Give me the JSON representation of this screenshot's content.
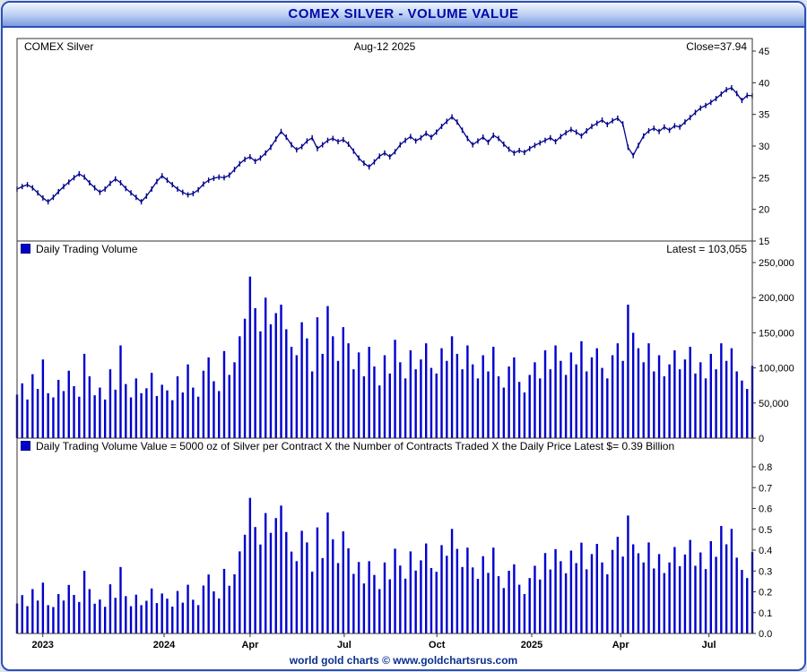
{
  "titlebar": {
    "text": "COMEX SILVER - VOLUME VALUE"
  },
  "footer": {
    "text": "world gold charts © www.goldchartsrus.com"
  },
  "colors": {
    "accent_blue": "#2b50b8",
    "title_text": "#0008a8",
    "price_line": "#00008B",
    "bar_blue": "#0000CD",
    "frame_line": "#333333",
    "footer_text": "#0a2f8f"
  },
  "panels": {
    "price": {
      "label": "COMEX Silver",
      "date": "Aug-12 2025",
      "close_label": "Close=37.94"
    },
    "volume": {
      "label": "Daily Trading Volume",
      "latest_label": "Latest = 103,055"
    },
    "value": {
      "label": "Daily Trading Volume Value = 5000 oz of Silver per Contract X the Number of Contracts Traded X the Daily Price  Latest $= 0.39 Billion"
    }
  },
  "chart_data": [
    {
      "type": "line",
      "name": "COMEX Silver daily close price (USD/oz)",
      "note": "Dense daily OHLC chart; series below is an evenly-spaced sampled estimate read from the pixels, x = index/(n-1) across the plot.",
      "ylim": [
        15,
        45
      ],
      "yticks": [
        15,
        20,
        25,
        30,
        35,
        40,
        45
      ],
      "latest_close": 37.94,
      "date_label": "Aug-12 2025",
      "xticks": [
        {
          "label": "2023",
          "f": 0.035
        },
        {
          "label": "2024",
          "f": 0.2
        },
        {
          "label": "Apr",
          "f": 0.317
        },
        {
          "label": "Jul",
          "f": 0.445
        },
        {
          "label": "Oct",
          "f": 0.571
        },
        {
          "label": "2025",
          "f": 0.7
        },
        {
          "label": "Apr",
          "f": 0.821
        },
        {
          "label": "Jul",
          "f": 0.941
        }
      ],
      "close_series": [
        23.2,
        23.6,
        23.9,
        23.4,
        22.6,
        21.8,
        21.2,
        21.9,
        22.8,
        23.6,
        24.3,
        25.0,
        25.6,
        25.1,
        24.2,
        23.4,
        22.7,
        23.2,
        24.1,
        24.8,
        24.2,
        23.3,
        22.6,
        21.9,
        21.2,
        22.1,
        23.2,
        24.4,
        25.3,
        24.6,
        23.9,
        23.2,
        22.7,
        22.3,
        22.5,
        23.1,
        24.0,
        24.6,
        24.9,
        25.1,
        25.0,
        25.4,
        26.3,
        27.2,
        27.9,
        28.3,
        27.6,
        28.1,
        28.9,
        29.8,
        31.1,
        32.3,
        31.4,
        30.2,
        29.4,
        29.9,
        30.8,
        31.3,
        29.6,
        30.2,
        30.9,
        31.2,
        30.7,
        31.0,
        30.3,
        29.2,
        28.1,
        27.3,
        26.7,
        27.5,
        28.4,
        28.9,
        28.3,
        29.1,
        30.2,
        30.9,
        31.5,
        30.8,
        31.3,
        32.0,
        31.4,
        32.2,
        33.1,
        33.9,
        34.6,
        33.8,
        32.5,
        31.2,
        30.2,
        30.8,
        31.4,
        30.6,
        31.7,
        31.2,
        30.3,
        29.5,
        28.9,
        29.3,
        29.0,
        29.6,
        30.1,
        30.5,
        30.9,
        31.3,
        30.7,
        31.5,
        32.1,
        32.6,
        32.2,
        31.6,
        32.4,
        33.1,
        33.6,
        34.1,
        33.4,
        34.0,
        34.4,
        33.5,
        29.8,
        28.5,
        30.1,
        31.6,
        32.4,
        32.8,
        32.3,
        33.0,
        32.5,
        33.2,
        33.0,
        33.8,
        34.5,
        35.3,
        36.0,
        36.4,
        36.9,
        37.5,
        38.2,
        38.9,
        39.2,
        38.3,
        37.2,
        38.0,
        37.94
      ]
    },
    {
      "type": "bar",
      "name": "Daily Trading Volume (contracts)",
      "note": "Sampled estimate of daily volume bars; shares x axis with price chart.",
      "ylim": [
        0,
        250000
      ],
      "yticks": [
        0,
        50000,
        100000,
        150000,
        200000,
        250000
      ],
      "latest": 103055,
      "values": [
        62000,
        78000,
        55000,
        91000,
        70000,
        112000,
        64000,
        58000,
        83000,
        67000,
        96000,
        74000,
        59000,
        120000,
        88000,
        61000,
        72000,
        55000,
        98000,
        69000,
        132000,
        77000,
        58000,
        85000,
        64000,
        71000,
        93000,
        60000,
        76000,
        68000,
        54000,
        88000,
        65000,
        105000,
        72000,
        59000,
        96000,
        115000,
        81000,
        67000,
        124000,
        90000,
        108000,
        145000,
        170000,
        230000,
        185000,
        152000,
        200000,
        162000,
        178000,
        190000,
        155000,
        130000,
        118000,
        165000,
        142000,
        95000,
        172000,
        120000,
        188000,
        145000,
        110000,
        158000,
        135000,
        98000,
        122000,
        88000,
        130000,
        102000,
        75000,
        118000,
        92000,
        140000,
        108000,
        85000,
        125000,
        98000,
        112000,
        135000,
        100000,
        92000,
        128000,
        110000,
        145000,
        120000,
        98000,
        132000,
        105000,
        85000,
        118000,
        95000,
        130000,
        88000,
        72000,
        102000,
        115000,
        80000,
        65000,
        90000,
        108000,
        85000,
        125000,
        98000,
        132000,
        110000,
        90000,
        122000,
        105000,
        138000,
        95000,
        115000,
        128000,
        100000,
        85000,
        118000,
        135000,
        110000,
        190000,
        150000,
        128000,
        108000,
        135000,
        95000,
        118000,
        88000,
        105000,
        125000,
        98000,
        112000,
        130000,
        92000,
        108000,
        85000,
        120000,
        98000,
        135000,
        110000,
        128000,
        95000,
        82000,
        70000,
        103055
      ]
    },
    {
      "type": "bar",
      "name": "Daily Trading Volume Value (billion USD)",
      "note": "Sampled estimate; proportional to volume x price. Latest = 0.39 Billion.",
      "ylim": [
        0,
        0.8
      ],
      "yticks": [
        0.0,
        0.1,
        0.2,
        0.3,
        0.4,
        0.5,
        0.6,
        0.7,
        0.8
      ],
      "latest": 0.39,
      "values": [
        0.144,
        0.184,
        0.131,
        0.213,
        0.158,
        0.244,
        0.136,
        0.127,
        0.189,
        0.158,
        0.233,
        0.185,
        0.151,
        0.301,
        0.213,
        0.143,
        0.163,
        0.128,
        0.236,
        0.171,
        0.319,
        0.179,
        0.131,
        0.186,
        0.136,
        0.157,
        0.216,
        0.146,
        0.192,
        0.167,
        0.129,
        0.204,
        0.148,
        0.234,
        0.162,
        0.136,
        0.23,
        0.283,
        0.202,
        0.168,
        0.31,
        0.229,
        0.284,
        0.394,
        0.474,
        0.651,
        0.511,
        0.427,
        0.578,
        0.483,
        0.554,
        0.614,
        0.487,
        0.393,
        0.347,
        0.493,
        0.437,
        0.297,
        0.509,
        0.362,
        0.581,
        0.452,
        0.338,
        0.49,
        0.409,
        0.286,
        0.343,
        0.24,
        0.347,
        0.281,
        0.213,
        0.341,
        0.26,
        0.407,
        0.326,
        0.263,
        0.394,
        0.302,
        0.351,
        0.432,
        0.314,
        0.296,
        0.424,
        0.373,
        0.502,
        0.406,
        0.319,
        0.412,
        0.317,
        0.262,
        0.371,
        0.291,
        0.412,
        0.275,
        0.218,
        0.301,
        0.332,
        0.234,
        0.189,
        0.266,
        0.325,
        0.259,
        0.386,
        0.307,
        0.405,
        0.347,
        0.289,
        0.398,
        0.338,
        0.436,
        0.308,
        0.381,
        0.43,
        0.341,
        0.284,
        0.401,
        0.464,
        0.369,
        0.566,
        0.428,
        0.385,
        0.341,
        0.437,
        0.312,
        0.381,
        0.29,
        0.341,
        0.415,
        0.323,
        0.379,
        0.449,
        0.325,
        0.389,
        0.309,
        0.443,
        0.368,
        0.516,
        0.428,
        0.502,
        0.364,
        0.305,
        0.266,
        0.391
      ]
    }
  ]
}
